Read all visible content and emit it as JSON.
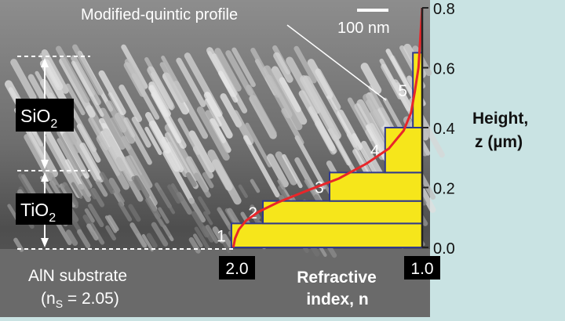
{
  "labels": {
    "profile_label": "Modified-quintic profile",
    "scale_bar": "100 nm",
    "sio2": {
      "main": "SiO",
      "sub": "2"
    },
    "tio2": {
      "main": "TiO",
      "sub": "2"
    },
    "substrate_line1": "AlN substrate",
    "substrate_line2_prefix": "(n",
    "substrate_line2_sub": "S",
    "substrate_line2_suffix": " = 2.05)"
  },
  "chart_data": {
    "type": "bar",
    "xlabel_line1": "Refractive",
    "xlabel_line2": "index, n",
    "ylabel_line1": "Height,",
    "ylabel_line2": "z (µm)",
    "x_ticks": [
      "2.0",
      "1.0"
    ],
    "xlim": [
      2.0,
      1.0
    ],
    "ylim": [
      0.0,
      0.8
    ],
    "y_ticks": [
      "0.0",
      "0.2",
      "0.4",
      "0.6",
      "0.8"
    ],
    "y_tick_values": [
      0.0,
      0.2,
      0.4,
      0.6,
      0.8
    ],
    "layers": [
      {
        "label": "1",
        "z_bottom": 0.0,
        "z_top": 0.08,
        "n": 2.03
      },
      {
        "label": "2",
        "z_bottom": 0.08,
        "z_top": 0.155,
        "n": 1.86
      },
      {
        "label": "3",
        "z_bottom": 0.155,
        "z_top": 0.25,
        "n": 1.5
      },
      {
        "label": "4",
        "z_bottom": 0.25,
        "z_top": 0.4,
        "n": 1.2
      },
      {
        "label": "5",
        "z_bottom": 0.4,
        "z_top": 0.65,
        "n": 1.05
      }
    ],
    "profile": {
      "x": [
        2.02,
        2.01,
        1.99,
        1.95,
        1.88,
        1.78,
        1.62,
        1.45,
        1.3,
        1.18,
        1.1,
        1.06,
        1.04,
        1.02,
        1.01,
        1.0
      ],
      "z": [
        0.0,
        0.03,
        0.06,
        0.09,
        0.12,
        0.15,
        0.19,
        0.23,
        0.28,
        0.33,
        0.39,
        0.45,
        0.52,
        0.6,
        0.7,
        0.8
      ]
    },
    "colors": {
      "bar_fill": "#f6e61b",
      "bar_stroke": "#303a8c",
      "profile": "#e8262a",
      "axis": "#222222",
      "background": "#c9e3e3"
    }
  }
}
